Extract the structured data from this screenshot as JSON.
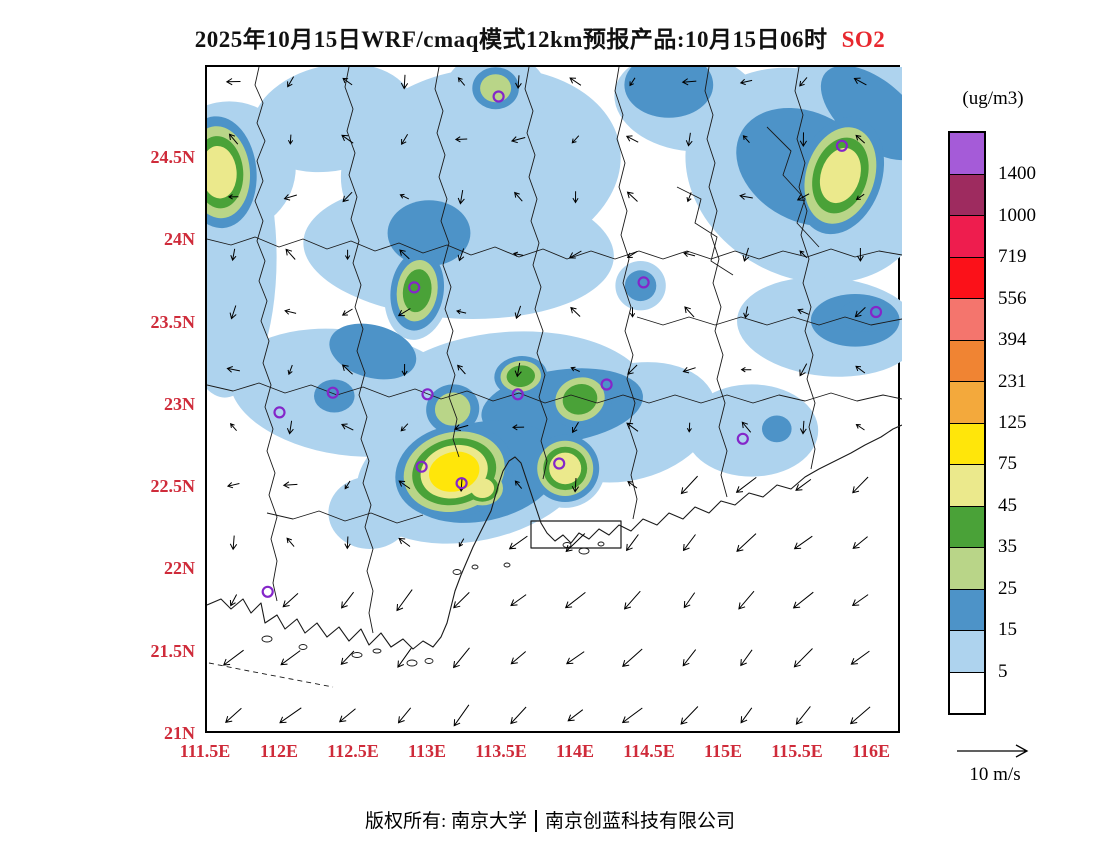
{
  "title": {
    "main": "2025年10月15日WRF/cmaq模式12km预报产品:10月15日06时",
    "species": "SO2"
  },
  "footer": {
    "owner": "版权所有: 南京大学",
    "company": "南京创蓝科技有限公司"
  },
  "wind_legend": {
    "label": "10 m/s"
  },
  "colorbar": {
    "unit_label": "(ug/m3)",
    "labels": [
      "1400",
      "1000",
      "719",
      "556",
      "394",
      "231",
      "125",
      "75",
      "45",
      "35",
      "25",
      "15",
      "5"
    ],
    "colors_top_to_bottom": [
      "#a55bd8",
      "#9e2b5f",
      "#ee1d4e",
      "#fb1119",
      "#f4756d",
      "#f08433",
      "#f3a93c",
      "#ffe60a",
      "#ebe98c",
      "#4aa238",
      "#b9d588",
      "#4d93c8",
      "#aed3ee",
      "#ffffff"
    ]
  },
  "axes": {
    "tick_color": "#cf2b3a",
    "lat": [
      {
        "label": "24.5N",
        "value": 24.5
      },
      {
        "label": "24N",
        "value": 24.0
      },
      {
        "label": "23.5N",
        "value": 23.5
      },
      {
        "label": "23N",
        "value": 23.0
      },
      {
        "label": "22.5N",
        "value": 22.5
      },
      {
        "label": "22N",
        "value": 22.0
      },
      {
        "label": "21.5N",
        "value": 21.5
      },
      {
        "label": "21N",
        "value": 21.0
      }
    ],
    "lon": [
      {
        "label": "111.5E",
        "value": 111.5
      },
      {
        "label": "112E",
        "value": 112.0
      },
      {
        "label": "112.5E",
        "value": 112.5
      },
      {
        "label": "113E",
        "value": 113.0
      },
      {
        "label": "113.5E",
        "value": 113.5
      },
      {
        "label": "114E",
        "value": 114.0
      },
      {
        "label": "114.5E",
        "value": 114.5
      },
      {
        "label": "115E",
        "value": 115.0
      },
      {
        "label": "115.5E",
        "value": 115.5
      },
      {
        "label": "116E",
        "value": 116.0
      }
    ]
  },
  "chart_data": {
    "type": "heatmap",
    "title": "2025年10月15日WRF/cmaq模式12km预报产品:10月15日06时 SO2",
    "units": "ug/m3",
    "legend_position": "right",
    "extent": {
      "lon_min": 111.5,
      "lon_max": 116.196,
      "lat_min": 21.0,
      "lat_max": 25.059
    },
    "contour_levels": [
      5,
      15,
      25,
      35,
      45,
      75,
      125,
      231,
      394,
      556,
      719,
      1000,
      1400
    ],
    "levels": [
      {
        "band": "5",
        "range": "5-15",
        "color": "#aed3ee"
      },
      {
        "band": "15",
        "range": "15-25",
        "color": "#4d93c8"
      },
      {
        "band": "25",
        "range": "25-35",
        "color": "#b9d588"
      },
      {
        "band": "35",
        "range": "35-45",
        "color": "#4aa238"
      },
      {
        "band": "45",
        "range": "45-75",
        "color": "#ebe98c"
      },
      {
        "band": "75",
        "range": "75-125",
        "color": "#ffe60a"
      }
    ],
    "field_patches": [
      {
        "lon": 113.35,
        "lat": 24.45,
        "rx": 0.95,
        "ry": 0.6,
        "rot": -8,
        "band": "5"
      },
      {
        "lon": 113.2,
        "lat": 23.95,
        "rx": 1.05,
        "ry": 0.42,
        "rot": 3,
        "band": "5"
      },
      {
        "lon": 112.35,
        "lat": 24.75,
        "rx": 0.55,
        "ry": 0.32,
        "rot": -12,
        "band": "5"
      },
      {
        "lon": 114.75,
        "lat": 24.85,
        "rx": 0.5,
        "ry": 0.3,
        "rot": 8,
        "band": "5"
      },
      {
        "lon": 115.55,
        "lat": 24.4,
        "rx": 0.85,
        "ry": 0.62,
        "rot": 28,
        "band": "5"
      },
      {
        "lon": 115.7,
        "lat": 23.48,
        "rx": 0.62,
        "ry": 0.3,
        "rot": 5,
        "band": "5"
      },
      {
        "lon": 112.45,
        "lat": 23.08,
        "rx": 0.8,
        "ry": 0.38,
        "rot": 8,
        "band": "5"
      },
      {
        "lon": 113.55,
        "lat": 23.0,
        "rx": 0.95,
        "ry": 0.45,
        "rot": -4,
        "band": "5"
      },
      {
        "lon": 113.3,
        "lat": 22.6,
        "rx": 0.8,
        "ry": 0.42,
        "rot": -12,
        "band": "5"
      },
      {
        "lon": 114.35,
        "lat": 22.9,
        "rx": 0.6,
        "ry": 0.35,
        "rot": -15,
        "band": "5"
      },
      {
        "lon": 115.18,
        "lat": 22.85,
        "rx": 0.45,
        "ry": 0.28,
        "rot": 0,
        "band": "5"
      },
      {
        "lon": 111.62,
        "lat": 23.9,
        "rx": 0.35,
        "ry": 0.85,
        "rot": 0,
        "band": "5"
      },
      {
        "lon": 111.65,
        "lat": 24.45,
        "rx": 0.45,
        "ry": 0.4,
        "rot": 0,
        "band": "5"
      },
      {
        "lon": 113.45,
        "lat": 24.9,
        "rx": 0.35,
        "ry": 0.25,
        "rot": 0,
        "band": "5"
      },
      {
        "lon": 115.9,
        "lat": 24.9,
        "rx": 0.45,
        "ry": 0.3,
        "rot": 20,
        "band": "5"
      },
      {
        "lon": 112.6,
        "lat": 22.35,
        "rx": 0.28,
        "ry": 0.22,
        "rot": 0,
        "band": "5"
      },
      {
        "lon": 115.55,
        "lat": 24.45,
        "rx": 0.5,
        "ry": 0.33,
        "rot": 28,
        "band": "15"
      },
      {
        "lon": 116.0,
        "lat": 24.78,
        "rx": 0.42,
        "ry": 0.2,
        "rot": 40,
        "band": "15"
      },
      {
        "lon": 113.0,
        "lat": 24.05,
        "rx": 0.28,
        "ry": 0.2,
        "rot": 0,
        "band": "15"
      },
      {
        "lon": 113.9,
        "lat": 23.0,
        "rx": 0.55,
        "ry": 0.22,
        "rot": -8,
        "band": "15"
      },
      {
        "lon": 112.62,
        "lat": 23.33,
        "rx": 0.3,
        "ry": 0.16,
        "rot": 15,
        "band": "15"
      },
      {
        "lon": 115.88,
        "lat": 23.52,
        "rx": 0.3,
        "ry": 0.16,
        "rot": 0,
        "band": "15"
      },
      {
        "lon": 113.35,
        "lat": 22.6,
        "rx": 0.55,
        "ry": 0.3,
        "rot": -12,
        "band": "15"
      },
      {
        "lon": 114.62,
        "lat": 24.95,
        "rx": 0.3,
        "ry": 0.2,
        "rot": 0,
        "band": "15"
      }
    ],
    "hotspots": [
      {
        "lon": 111.58,
        "lat": 24.42,
        "rx": 0.3,
        "ry": 0.4,
        "rot": -5,
        "peak": "45"
      },
      {
        "lon": 113.45,
        "lat": 24.93,
        "rx": 0.21,
        "ry": 0.17,
        "rot": 0,
        "peak": "25"
      },
      {
        "lon": 115.78,
        "lat": 24.4,
        "rx": 0.33,
        "ry": 0.43,
        "rot": 18,
        "peak": "45"
      },
      {
        "lon": 112.92,
        "lat": 23.7,
        "rx": 0.22,
        "ry": 0.3,
        "rot": 8,
        "peak": "35"
      },
      {
        "lon": 114.43,
        "lat": 23.73,
        "rx": 0.17,
        "ry": 0.15,
        "rot": 0,
        "peak": "15"
      },
      {
        "lon": 112.36,
        "lat": 23.06,
        "rx": 0.22,
        "ry": 0.16,
        "rot": 0,
        "peak": "15"
      },
      {
        "lon": 113.16,
        "lat": 22.98,
        "rx": 0.24,
        "ry": 0.2,
        "rot": -10,
        "peak": "25"
      },
      {
        "lon": 113.62,
        "lat": 23.18,
        "rx": 0.22,
        "ry": 0.15,
        "rot": -5,
        "peak": "35"
      },
      {
        "lon": 114.02,
        "lat": 23.04,
        "rx": 0.27,
        "ry": 0.21,
        "rot": -18,
        "peak": "35"
      },
      {
        "lon": 113.17,
        "lat": 22.6,
        "rx": 0.46,
        "ry": 0.32,
        "rot": -14,
        "peak": "75"
      },
      {
        "lon": 113.36,
        "lat": 22.5,
        "rx": 0.2,
        "ry": 0.15,
        "rot": 0,
        "peak": "45"
      },
      {
        "lon": 113.92,
        "lat": 22.62,
        "rx": 0.27,
        "ry": 0.24,
        "rot": 0,
        "peak": "45"
      },
      {
        "lon": 115.35,
        "lat": 22.86,
        "rx": 0.16,
        "ry": 0.13,
        "rot": 0,
        "peak": "15"
      },
      {
        "lon": 115.95,
        "lat": 23.55,
        "rx": 0.28,
        "ry": 0.16,
        "rot": 0,
        "peak": "15"
      }
    ],
    "city_markers": [
      {
        "lon": 113.47,
        "lat": 24.88
      },
      {
        "lon": 115.79,
        "lat": 24.58
      },
      {
        "lon": 116.02,
        "lat": 23.57
      },
      {
        "lon": 112.9,
        "lat": 23.72
      },
      {
        "lon": 114.45,
        "lat": 23.75
      },
      {
        "lon": 112.35,
        "lat": 23.08
      },
      {
        "lon": 111.99,
        "lat": 22.96
      },
      {
        "lon": 112.99,
        "lat": 23.07
      },
      {
        "lon": 113.6,
        "lat": 23.07
      },
      {
        "lon": 114.2,
        "lat": 23.13
      },
      {
        "lon": 115.12,
        "lat": 22.8
      },
      {
        "lon": 112.95,
        "lat": 22.63
      },
      {
        "lon": 113.22,
        "lat": 22.53
      },
      {
        "lon": 113.88,
        "lat": 22.65
      },
      {
        "lon": 111.91,
        "lat": 21.87
      }
    ],
    "wind": {
      "reference_label": "10 m/s",
      "flow_summary": "Northeasterly flow over the sea (long arrows pointing SW); weak variable winds over land",
      "lon_start": 111.68,
      "lon_step": 0.385,
      "lat_start": 21.12,
      "lat_step": 0.35,
      "sea_dir_to": 225,
      "sea_len": 26,
      "land_dir_to": 250,
      "land_len": 12,
      "coast_lat_base": 21.78,
      "coast_lat_slope": 0.255
    }
  }
}
